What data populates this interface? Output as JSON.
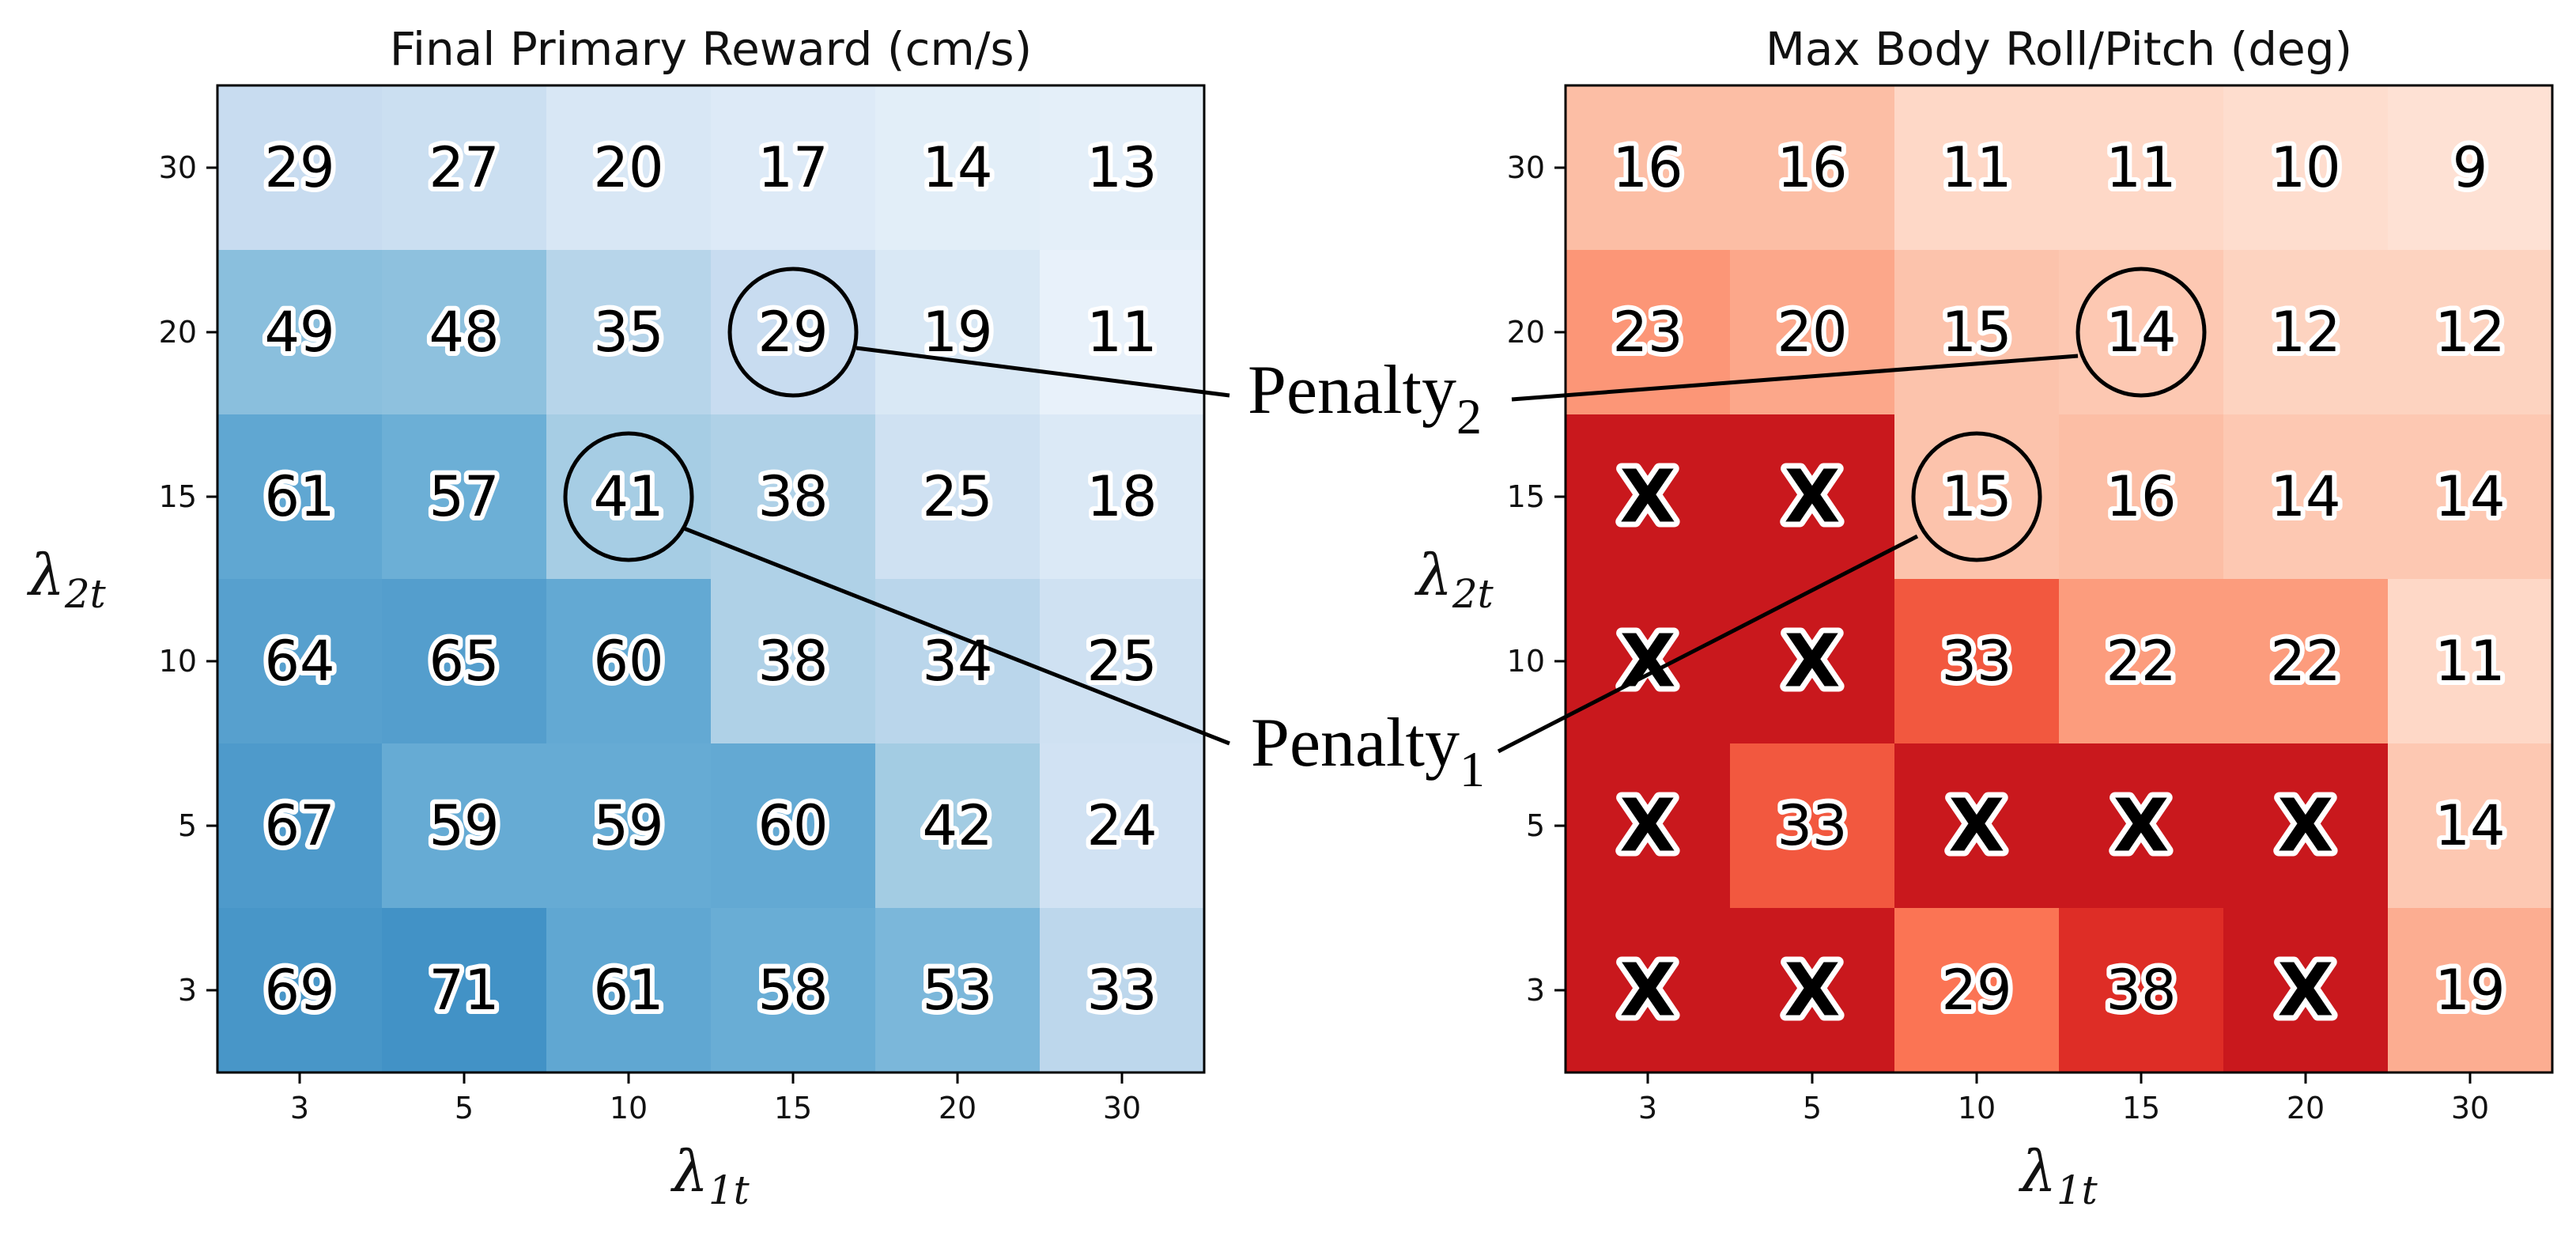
{
  "chart_data": [
    {
      "type": "heatmap",
      "title": "Final Primary Reward (cm/s)",
      "xlabel": "λ",
      "xlabel_sub": "1t",
      "ylabel": "λ",
      "ylabel_sub": "2t",
      "x_ticks": [
        "3",
        "5",
        "10",
        "15",
        "20",
        "30"
      ],
      "y_ticks": [
        "30",
        "20",
        "15",
        "10",
        "5",
        "3"
      ],
      "colormap": "Blues",
      "values": [
        [
          29,
          27,
          20,
          17,
          14,
          13
        ],
        [
          49,
          48,
          35,
          29,
          19,
          11
        ],
        [
          61,
          57,
          41,
          38,
          25,
          18
        ],
        [
          64,
          65,
          60,
          38,
          34,
          25
        ],
        [
          67,
          59,
          59,
          60,
          42,
          24
        ],
        [
          69,
          71,
          61,
          58,
          53,
          33
        ]
      ],
      "labels": [
        [
          "29",
          "27",
          "20",
          "17",
          "14",
          "13"
        ],
        [
          "49",
          "48",
          "35",
          "29",
          "19",
          "11"
        ],
        [
          "61",
          "57",
          "41",
          "38",
          "25",
          "18"
        ],
        [
          "64",
          "65",
          "60",
          "38",
          "34",
          "25"
        ],
        [
          "67",
          "59",
          "59",
          "60",
          "42",
          "24"
        ],
        [
          "69",
          "71",
          "61",
          "58",
          "53",
          "33"
        ]
      ],
      "circled": [
        {
          "row": 1,
          "col": 3
        },
        {
          "row": 2,
          "col": 2
        }
      ]
    },
    {
      "type": "heatmap",
      "title": "Max Body Roll/Pitch (deg)",
      "xlabel": "λ",
      "xlabel_sub": "1t",
      "ylabel": "λ",
      "ylabel_sub": "2t",
      "x_ticks": [
        "3",
        "5",
        "10",
        "15",
        "20",
        "30"
      ],
      "y_ticks": [
        "30",
        "20",
        "15",
        "10",
        "5",
        "3"
      ],
      "colormap": "Reds",
      "values": [
        [
          16,
          16,
          11,
          11,
          10,
          9
        ],
        [
          23,
          20,
          15,
          14,
          12,
          12
        ],
        [
          null,
          null,
          15,
          16,
          14,
          14
        ],
        [
          null,
          null,
          33,
          22,
          22,
          11
        ],
        [
          null,
          33,
          null,
          null,
          null,
          14
        ],
        [
          null,
          null,
          29,
          38,
          null,
          19
        ]
      ],
      "labels": [
        [
          "16",
          "16",
          "11",
          "11",
          "10",
          "9"
        ],
        [
          "23",
          "20",
          "15",
          "14",
          "12",
          "12"
        ],
        [
          "X",
          "X",
          "15",
          "16",
          "14",
          "14"
        ],
        [
          "X",
          "X",
          "33",
          "22",
          "22",
          "11"
        ],
        [
          "X",
          "33",
          "X",
          "X",
          "X",
          "14"
        ],
        [
          "X",
          "X",
          "29",
          "38",
          "X",
          "19"
        ]
      ],
      "failed_color": "#c9181d",
      "circled": [
        {
          "row": 1,
          "col": 3
        },
        {
          "row": 2,
          "col": 2
        }
      ]
    }
  ],
  "annotations": {
    "penalty1": {
      "base": "Penalty",
      "sub": "1"
    },
    "penalty2": {
      "base": "Penalty",
      "sub": "2"
    }
  }
}
